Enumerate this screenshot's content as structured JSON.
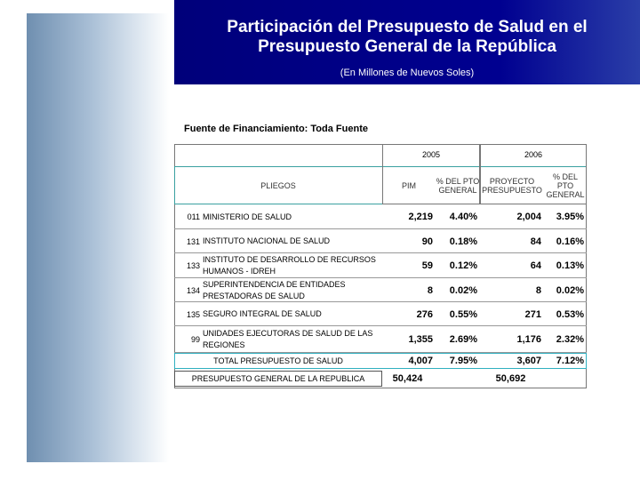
{
  "header": {
    "title": "Participación del Presupuesto de Salud en el Presupuesto General de la República",
    "subtitle": "(En Millones de Nuevos Soles)"
  },
  "source": "Fuente de Financiamiento: Toda Fuente",
  "table": {
    "years": [
      "2005",
      "2006"
    ],
    "columns": [
      "PLIEGOS",
      "PIM",
      "% DEL PTO GENERAL",
      "PROYECTO PRESUPUESTO",
      "% DEL PTO GENERAL"
    ],
    "rows": [
      {
        "code": "011",
        "name": "MINISTERIO DE SALUD",
        "cells": [
          "2,219",
          "4.40%",
          "2,004",
          "3.95%"
        ]
      },
      {
        "code": "131",
        "name": "INSTITUTO NACIONAL DE SALUD",
        "cells": [
          "90",
          "0.18%",
          "84",
          "0.16%"
        ]
      },
      {
        "code": "133",
        "name": "INSTITUTO DE DESARROLLO DE RECURSOS HUMANOS - IDREH",
        "cells": [
          "59",
          "0.12%",
          "64",
          "0.13%"
        ]
      },
      {
        "code": "134",
        "name": "SUPERINTENDENCIA DE ENTIDADES PRESTADORAS DE SALUD",
        "cells": [
          "8",
          "0.02%",
          "8",
          "0.02%"
        ]
      },
      {
        "code": "135",
        "name": "SEGURO INTEGRAL DE SALUD",
        "cells": [
          "276",
          "0.55%",
          "271",
          "0.53%"
        ]
      },
      {
        "code": "99",
        "name": "UNIDADES EJECUTORAS DE SALUD DE LAS REGIONES",
        "cells": [
          "1,355",
          "2.69%",
          "1,176",
          "2.32%"
        ]
      },
      {
        "name": "TOTAL PRESUPUESTO DE SALUD",
        "cells": [
          "4,007",
          "7.95%",
          "3,607",
          "7.12%"
        ]
      },
      {
        "name": "PRESUPUESTO GENERAL DE LA REPUBLICA",
        "cells": [
          "50,424",
          null,
          "50,692",
          null
        ]
      }
    ]
  }
}
